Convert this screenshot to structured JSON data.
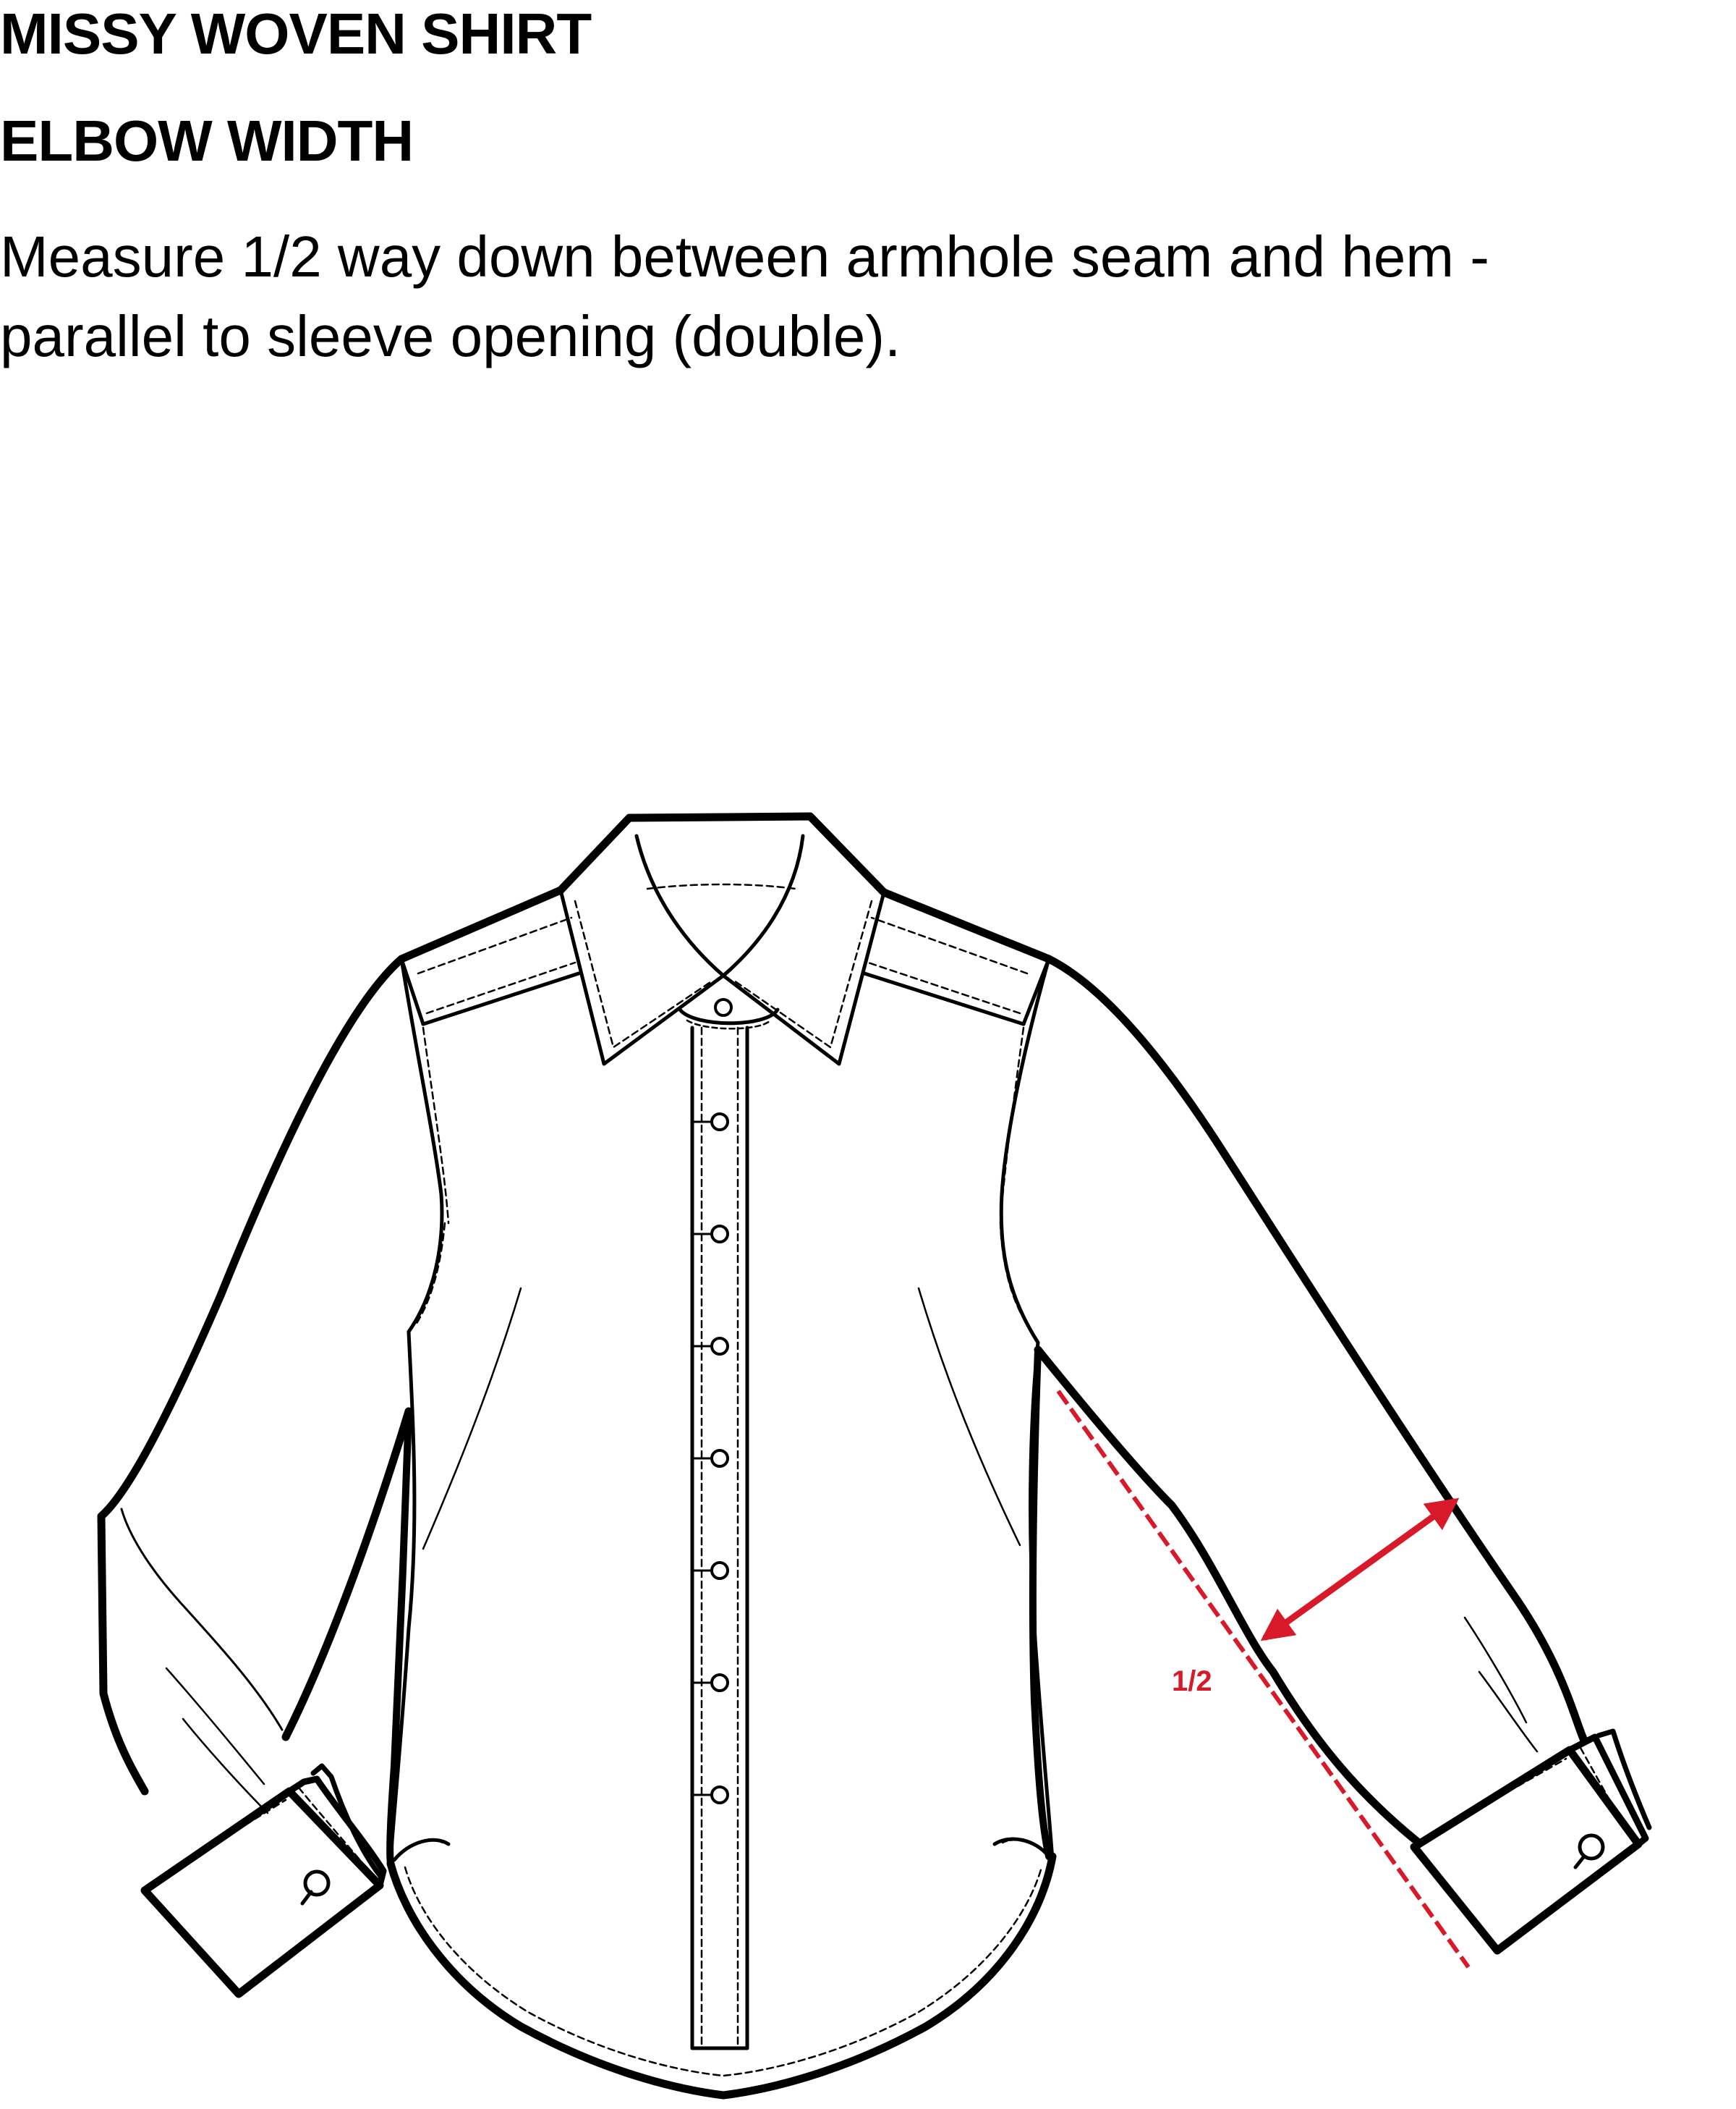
{
  "header": {
    "title": "MISSY WOVEN SHIRT",
    "subtitle": "ELBOW WIDTH",
    "instruction_lines": [
      "Measure 1/2 way down between armhole seam and hem -",
      "parallel to sleeve opening (double)."
    ]
  },
  "diagram": {
    "measurement_label": "1/2",
    "colors": {
      "outline": "#000000",
      "measure": "#d7192a"
    },
    "button_count": 8
  }
}
